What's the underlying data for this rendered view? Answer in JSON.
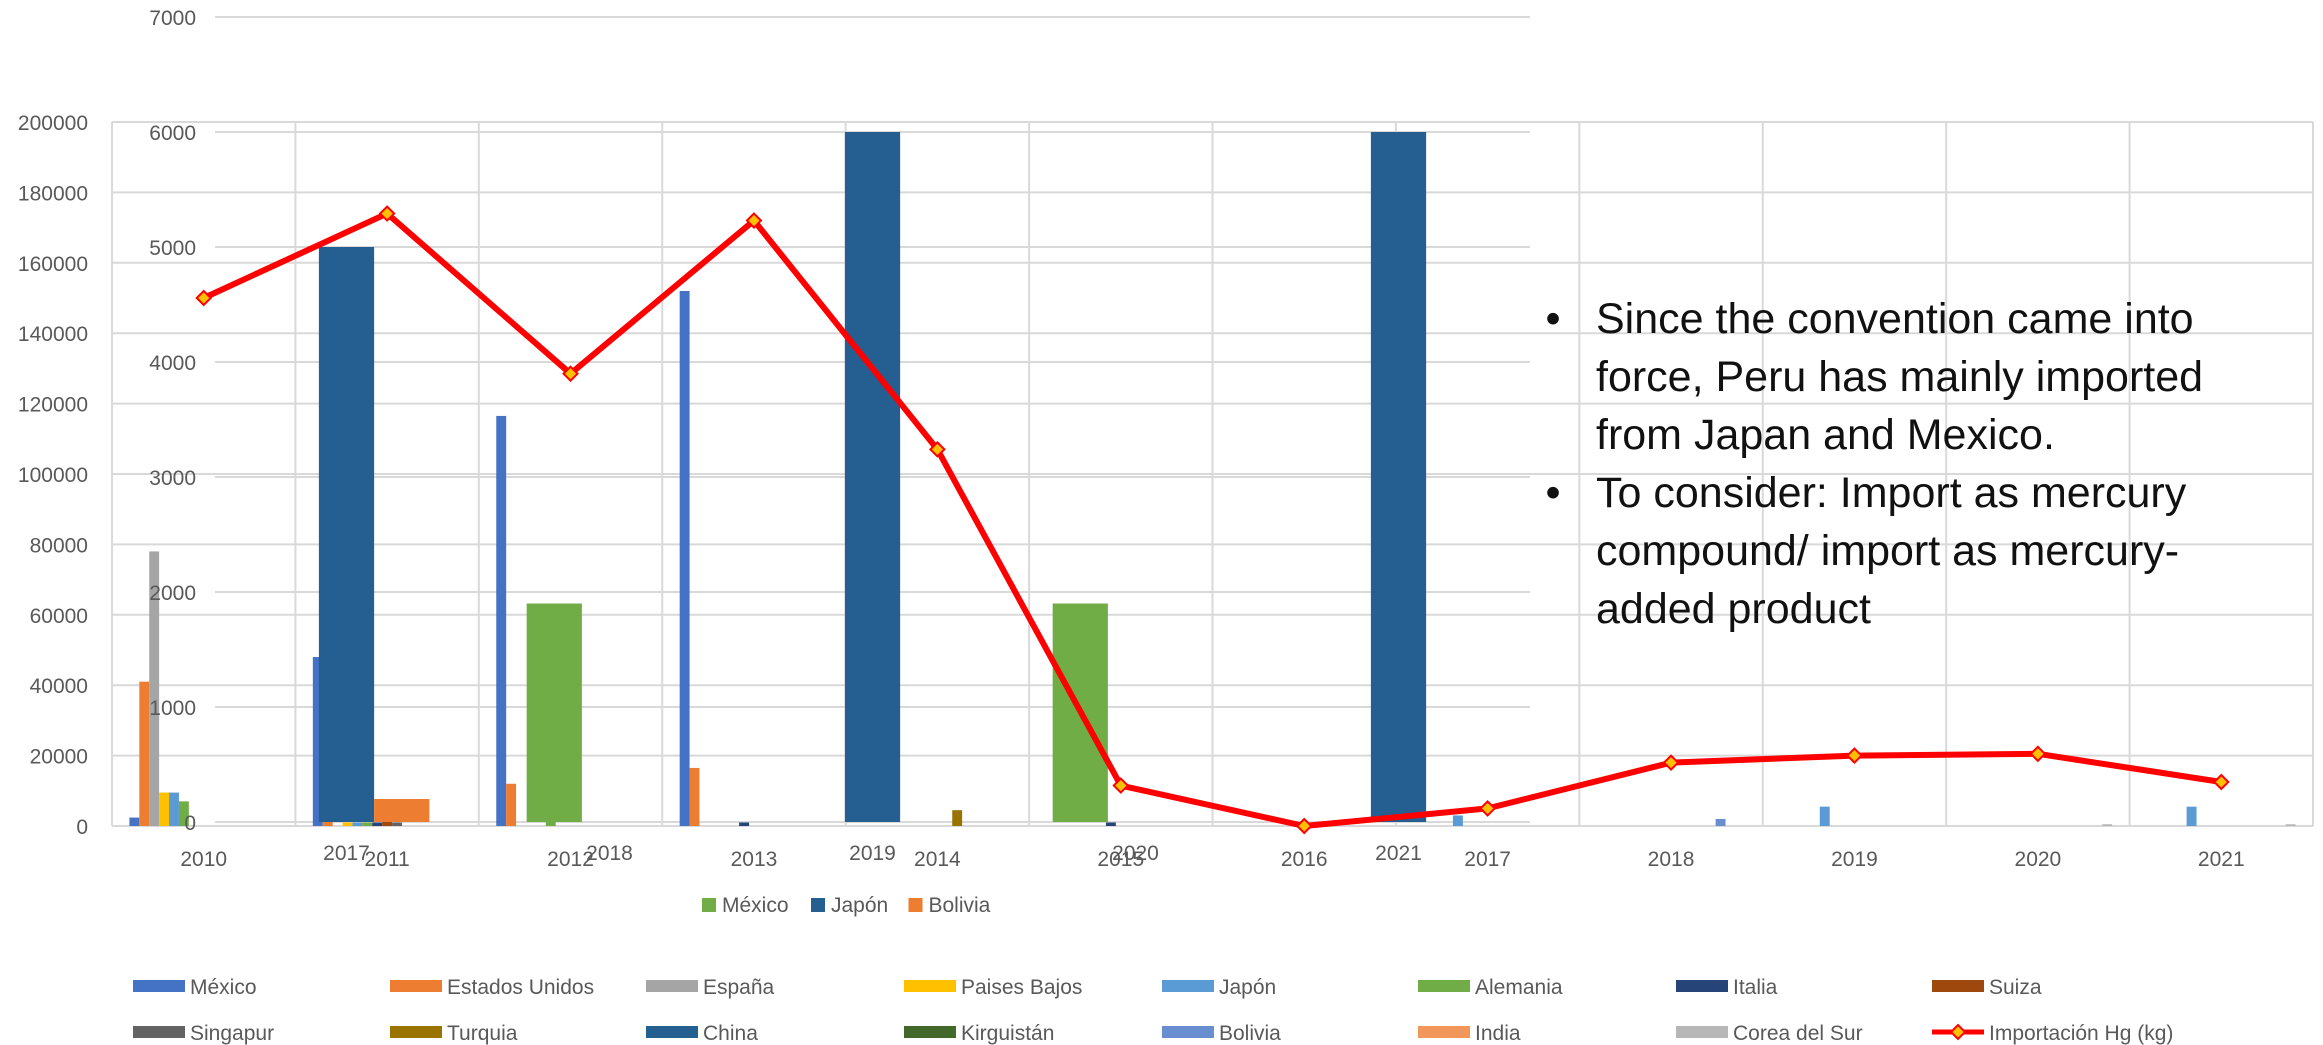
{
  "chart_data": [
    {
      "type": "bar",
      "role": "main",
      "title": "",
      "xlabel": "",
      "ylabel": "",
      "ylim": [
        0,
        200000
      ],
      "y_ticks": [
        "0",
        "20000",
        "40000",
        "60000",
        "80000",
        "100000",
        "120000",
        "140000",
        "160000",
        "180000",
        "200000"
      ],
      "categories": [
        "2010",
        "2011",
        "2012",
        "2013",
        "2014",
        "2015",
        "2016",
        "2017",
        "2018",
        "2019",
        "2020",
        "2021"
      ],
      "grid": true,
      "legend_position": "bottom",
      "series": [
        {
          "name": "México",
          "color": "#4472C4",
          "values": [
            2400,
            48000,
            116500,
            152000,
            0,
            0,
            0,
            0,
            0,
            0,
            0,
            0
          ]
        },
        {
          "name": "Estados Unidos",
          "color": "#ED7D31",
          "values": [
            41000,
            44000,
            12000,
            16500,
            0,
            0,
            0,
            0,
            0,
            0,
            0,
            0
          ]
        },
        {
          "name": "España",
          "color": "#A5A5A5",
          "values": [
            78000,
            0,
            0,
            0,
            0,
            0,
            0,
            0,
            0,
            0,
            0,
            0
          ]
        },
        {
          "name": "Paises Bajos",
          "color": "#FFC000",
          "values": [
            9500,
            1000,
            0,
            0,
            0,
            0,
            0,
            0,
            0,
            0,
            0,
            0
          ]
        },
        {
          "name": "Japón",
          "color": "#5B9BD5",
          "values": [
            9500,
            1000,
            0,
            0,
            0,
            0,
            0,
            3000,
            0,
            5500,
            0,
            5500
          ]
        },
        {
          "name": "Alemania",
          "color": "#70AD47",
          "values": [
            7000,
            1000,
            2000,
            0,
            0,
            0,
            0,
            0,
            0,
            0,
            0,
            0
          ]
        },
        {
          "name": "Italia",
          "color": "#264478",
          "values": [
            0,
            1000,
            0,
            1000,
            0,
            1000,
            0,
            0,
            0,
            0,
            0,
            0
          ]
        },
        {
          "name": "Suiza",
          "color": "#9E480E",
          "values": [
            0,
            5000,
            0,
            0,
            0,
            0,
            0,
            0,
            0,
            0,
            0,
            0
          ]
        },
        {
          "name": "Singapur",
          "color": "#636363",
          "values": [
            0,
            1000,
            0,
            0,
            0,
            0,
            0,
            0,
            0,
            0,
            0,
            0
          ]
        },
        {
          "name": "Turquia",
          "color": "#997300",
          "values": [
            0,
            0,
            0,
            0,
            4500,
            0,
            0,
            0,
            0,
            0,
            0,
            0
          ]
        },
        {
          "name": "China",
          "color": "#255E91",
          "values": [
            0,
            0,
            0,
            0,
            0,
            0,
            0,
            0,
            0,
            0,
            0,
            0
          ]
        },
        {
          "name": "Kirguistán",
          "color": "#43682B",
          "values": [
            0,
            0,
            0,
            0,
            0,
            0,
            0,
            0,
            0,
            0,
            0,
            0
          ]
        },
        {
          "name": "Bolivia",
          "color": "#698ED0",
          "values": [
            0,
            0,
            0,
            0,
            0,
            0,
            0,
            0,
            2000,
            0,
            0,
            0
          ]
        },
        {
          "name": "India",
          "color": "#F1975A",
          "values": [
            0,
            0,
            0,
            0,
            0,
            0,
            0,
            0,
            0,
            0,
            0,
            0
          ]
        },
        {
          "name": "Corea del Sur",
          "color": "#B7B7B7",
          "values": [
            0,
            0,
            0,
            0,
            0,
            0,
            0,
            0,
            0,
            0,
            500,
            500
          ]
        }
      ],
      "line_series": {
        "name": "Importación Hg (kg)",
        "color": "#FF0000",
        "marker_color": "#FFC000",
        "values": [
          150000,
          174000,
          128500,
          172000,
          107000,
          11500,
          0,
          5000,
          18000,
          20000,
          20500,
          12500
        ]
      }
    },
    {
      "type": "bar",
      "role": "inset",
      "title": "",
      "xlabel": "",
      "ylabel": "",
      "ylim": [
        0,
        7000
      ],
      "y_ticks": [
        "0",
        "1000",
        "2000",
        "3000",
        "4000",
        "5000",
        "6000",
        "7000"
      ],
      "categories": [
        "2017",
        "2018",
        "2019",
        "2020",
        "2021"
      ],
      "grid": true,
      "legend_position": "bottom",
      "series": [
        {
          "name": "México",
          "color": "#70AD47",
          "values": [
            0,
            1900,
            0,
            1900,
            0
          ]
        },
        {
          "name": "Japón",
          "color": "#255E91",
          "values": [
            5000,
            0,
            6000,
            0,
            6000
          ]
        },
        {
          "name": "Bolivia",
          "color": "#ED7D31",
          "values": [
            200,
            0,
            0,
            0,
            0
          ]
        }
      ]
    }
  ],
  "legend_main": [
    {
      "label": "México",
      "color": "#4472C4",
      "kind": "bar"
    },
    {
      "label": "Estados Unidos",
      "color": "#ED7D31",
      "kind": "bar"
    },
    {
      "label": "España",
      "color": "#A5A5A5",
      "kind": "bar"
    },
    {
      "label": "Paises Bajos",
      "color": "#FFC000",
      "kind": "bar"
    },
    {
      "label": "Japón",
      "color": "#5B9BD5",
      "kind": "bar"
    },
    {
      "label": "Alemania",
      "color": "#70AD47",
      "kind": "bar"
    },
    {
      "label": "Italia",
      "color": "#264478",
      "kind": "bar"
    },
    {
      "label": "Suiza",
      "color": "#9E480E",
      "kind": "bar"
    },
    {
      "label": "Singapur",
      "color": "#636363",
      "kind": "bar"
    },
    {
      "label": "Turquia",
      "color": "#997300",
      "kind": "bar"
    },
    {
      "label": "China",
      "color": "#255E91",
      "kind": "bar"
    },
    {
      "label": "Kirguistán",
      "color": "#43682B",
      "kind": "bar"
    },
    {
      "label": "Bolivia",
      "color": "#698ED0",
      "kind": "bar"
    },
    {
      "label": "India",
      "color": "#F1975A",
      "kind": "bar"
    },
    {
      "label": "Corea del Sur",
      "color": "#B7B7B7",
      "kind": "bar"
    },
    {
      "label": "Importación Hg (kg)",
      "color": "#FF0000",
      "kind": "line"
    }
  ],
  "legend_inset": [
    {
      "label": "México",
      "color": "#70AD47"
    },
    {
      "label": "Japón",
      "color": "#255E91"
    },
    {
      "label": "Bolivia",
      "color": "#ED7D31"
    }
  ],
  "notes": [
    "Since the convention came into force, Peru has mainly  imported from Japan and Mexico.",
    "To consider: Import as mercury compound/ import as mercury-added product"
  ],
  "bullet_char": "•"
}
